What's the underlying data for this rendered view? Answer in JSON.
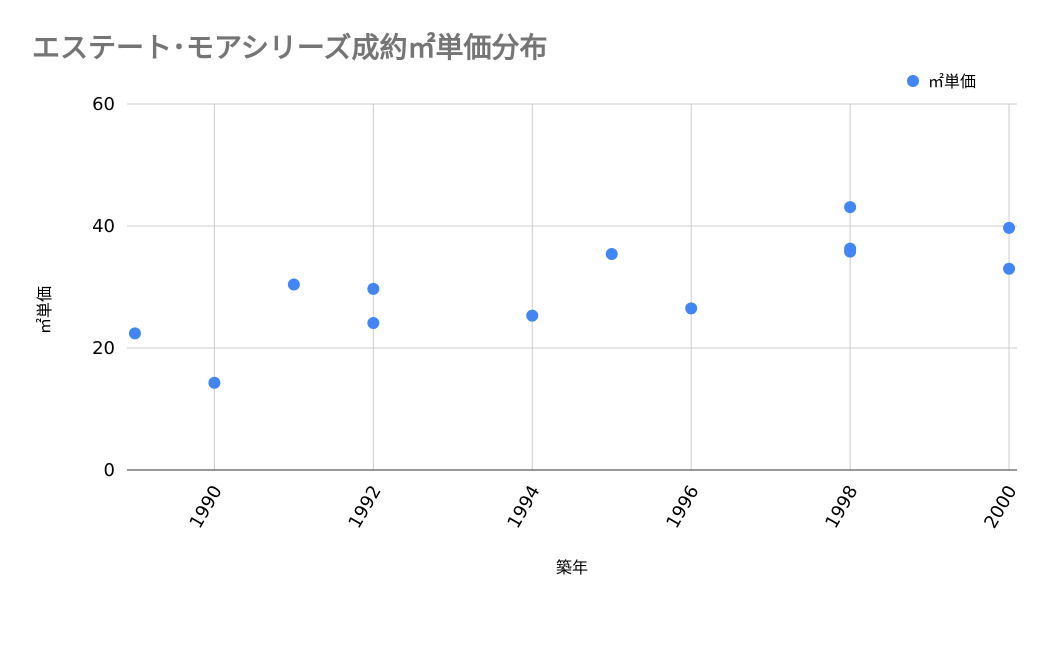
{
  "chart_data": {
    "type": "scatter",
    "title": "エステート･モアシリーズ成約㎡単価分布",
    "xlabel": "築年",
    "ylabel": "㎡単価",
    "xlim": [
      1988.9,
      2000.1
    ],
    "ylim": [
      0,
      60
    ],
    "x_ticks": [
      1990,
      1992,
      1994,
      1996,
      1998,
      2000
    ],
    "y_ticks": [
      0,
      20,
      40,
      60
    ],
    "grid": true,
    "legend_position": "top-right",
    "series": [
      {
        "name": "㎡単価",
        "color": "#4285f4",
        "points": [
          {
            "x": 1989,
            "y": 22.4
          },
          {
            "x": 1990,
            "y": 14.3
          },
          {
            "x": 1991,
            "y": 30.4
          },
          {
            "x": 1992,
            "y": 29.7
          },
          {
            "x": 1992,
            "y": 24.1
          },
          {
            "x": 1994,
            "y": 25.3
          },
          {
            "x": 1995,
            "y": 35.4
          },
          {
            "x": 1996,
            "y": 26.5
          },
          {
            "x": 1998,
            "y": 43.1
          },
          {
            "x": 1998,
            "y": 36.3
          },
          {
            "x": 1998,
            "y": 35.8
          },
          {
            "x": 2000,
            "y": 39.7
          },
          {
            "x": 2000,
            "y": 33.0
          }
        ]
      }
    ]
  }
}
